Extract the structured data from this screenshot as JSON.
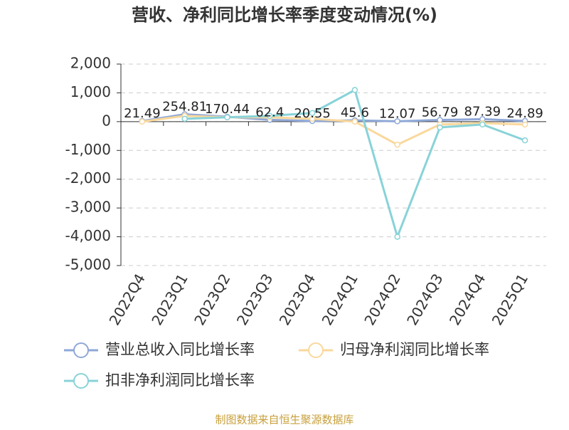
{
  "chart_data": {
    "type": "line",
    "title": "营收、净利同比增长率季度变动情况(%)",
    "categories": [
      "2022Q4",
      "2023Q1",
      "2023Q2",
      "2023Q3",
      "2023Q4",
      "2024Q1",
      "2024Q2",
      "2024Q3",
      "2024Q4",
      "2025Q1"
    ],
    "series": [
      {
        "name": "营业总收入同比增长率",
        "color": "#8fa8d8",
        "values": [
          21.49,
          254.81,
          170.44,
          62.4,
          20.55,
          45.6,
          12.07,
          56.79,
          87.39,
          24.89
        ]
      },
      {
        "name": "归母净利润同比增长率",
        "color": "#f9d89c",
        "values": [
          0,
          200,
          150,
          150,
          100,
          0,
          -800,
          -100,
          -50,
          -100
        ]
      },
      {
        "name": "扣非净利润同比增长率",
        "color": "#88d3d8",
        "values": [
          null,
          100,
          150,
          200,
          300,
          1100,
          -4000,
          -200,
          -100,
          -650
        ]
      }
    ],
    "ylim": [
      -5000,
      2000
    ],
    "yticks": [
      {
        "value": 2000,
        "label": "2,000"
      },
      {
        "value": 1000,
        "label": "1,000"
      },
      0,
      {
        "value": -1000,
        "label": "-1,000"
      },
      {
        "value": -2000,
        "label": "-2,000"
      },
      {
        "value": -3000,
        "label": "-3,000"
      },
      {
        "value": -4000,
        "label": "-4,000"
      },
      {
        "value": -5000,
        "label": "-5,000"
      }
    ],
    "grid": true,
    "source": "制图数据来自恒生聚源数据库"
  }
}
